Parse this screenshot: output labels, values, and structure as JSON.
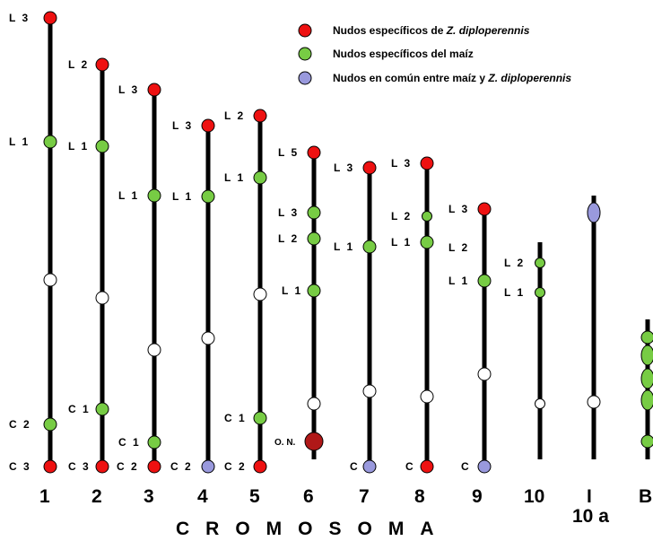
{
  "colors": {
    "specific_zd": "#ee1111",
    "specific_maize": "#77cc44",
    "common": "#9999dd",
    "centromere": "#ffffff",
    "organizer": "#b01818",
    "bar": "#000000"
  },
  "legend": [
    {
      "color_key": "specific_zd",
      "prefix": "Nudos específicos de ",
      "italic": "Z. diploperennis"
    },
    {
      "color_key": "specific_maize",
      "prefix": "Nudos específicos del maíz",
      "italic": ""
    },
    {
      "color_key": "common",
      "prefix": "Nudos en común entre maíz y ",
      "italic": "Z. diploperennis"
    }
  ],
  "axis_title": "CROMOSOMA",
  "chromosomes": [
    {
      "label": "1",
      "knobs": [
        {
          "label": "L 3",
          "type": "specific_zd"
        },
        {
          "label": "L 1",
          "type": "specific_maize"
        },
        {
          "label": "",
          "type": "centromere"
        },
        {
          "label": "C 2",
          "type": "specific_maize"
        },
        {
          "label": "C 3",
          "type": "specific_zd"
        }
      ]
    },
    {
      "label": "2",
      "knobs": [
        {
          "label": "L 2",
          "type": "specific_zd"
        },
        {
          "label": "L 1",
          "type": "specific_maize"
        },
        {
          "label": "",
          "type": "centromere"
        },
        {
          "label": "C 1",
          "type": "specific_maize"
        },
        {
          "label": "C 3",
          "type": "specific_zd"
        }
      ]
    },
    {
      "label": "3",
      "knobs": [
        {
          "label": "L 3",
          "type": "specific_zd"
        },
        {
          "label": "L 1",
          "type": "specific_maize"
        },
        {
          "label": "",
          "type": "centromere"
        },
        {
          "label": "C 1",
          "type": "specific_maize"
        },
        {
          "label": "C 2",
          "type": "specific_zd"
        }
      ]
    },
    {
      "label": "4",
      "knobs": [
        {
          "label": "L 3",
          "type": "specific_zd"
        },
        {
          "label": "L 1",
          "type": "specific_maize"
        },
        {
          "label": "",
          "type": "centromere"
        },
        {
          "label": "C 2",
          "type": "common"
        }
      ]
    },
    {
      "label": "5",
      "knobs": [
        {
          "label": "L 2",
          "type": "specific_zd"
        },
        {
          "label": "L 1",
          "type": "specific_maize"
        },
        {
          "label": "",
          "type": "centromere"
        },
        {
          "label": "C 1",
          "type": "specific_maize"
        },
        {
          "label": "C 2",
          "type": "specific_zd"
        }
      ]
    },
    {
      "label": "6",
      "knobs": [
        {
          "label": "L 5",
          "type": "specific_zd"
        },
        {
          "label": "L 3",
          "type": "specific_maize"
        },
        {
          "label": "L 2",
          "type": "specific_maize"
        },
        {
          "label": "L 1",
          "type": "specific_maize"
        },
        {
          "label": "",
          "type": "centromere"
        },
        {
          "label": "O. N.",
          "type": "organizer"
        }
      ]
    },
    {
      "label": "7",
      "knobs": [
        {
          "label": "L 3",
          "type": "specific_zd"
        },
        {
          "label": "L 1",
          "type": "specific_maize"
        },
        {
          "label": "",
          "type": "centromere"
        },
        {
          "label": "C",
          "type": "common"
        }
      ]
    },
    {
      "label": "8",
      "knobs": [
        {
          "label": "L 3",
          "type": "specific_zd"
        },
        {
          "label": "L 2",
          "type": "specific_maize"
        },
        {
          "label": "L 1",
          "type": "specific_maize"
        },
        {
          "label": "",
          "type": "centromere"
        },
        {
          "label": "C",
          "type": "specific_zd"
        }
      ]
    },
    {
      "label": "9",
      "knobs": [
        {
          "label": "L 3",
          "type": "specific_zd"
        },
        {
          "label": "L 2",
          "type": "none"
        },
        {
          "label": "L 1",
          "type": "specific_maize"
        },
        {
          "label": "",
          "type": "centromere"
        },
        {
          "label": "C",
          "type": "common"
        }
      ]
    },
    {
      "label": "10",
      "knobs": [
        {
          "label": "L 2",
          "type": "specific_maize"
        },
        {
          "label": "L 1",
          "type": "specific_maize"
        },
        {
          "label": "",
          "type": "centromere"
        }
      ]
    },
    {
      "label": "I",
      "sublabel": "10 a",
      "knobs": [
        {
          "label": "",
          "type": "common"
        },
        {
          "label": "",
          "type": "centromere"
        }
      ]
    },
    {
      "label": "B",
      "knobs": [
        {
          "label": "",
          "type": "specific_maize"
        },
        {
          "label": "",
          "type": "specific_maize"
        },
        {
          "label": "",
          "type": "specific_maize"
        },
        {
          "label": "",
          "type": "specific_maize"
        },
        {
          "label": "",
          "type": "specific_maize"
        }
      ]
    }
  ]
}
